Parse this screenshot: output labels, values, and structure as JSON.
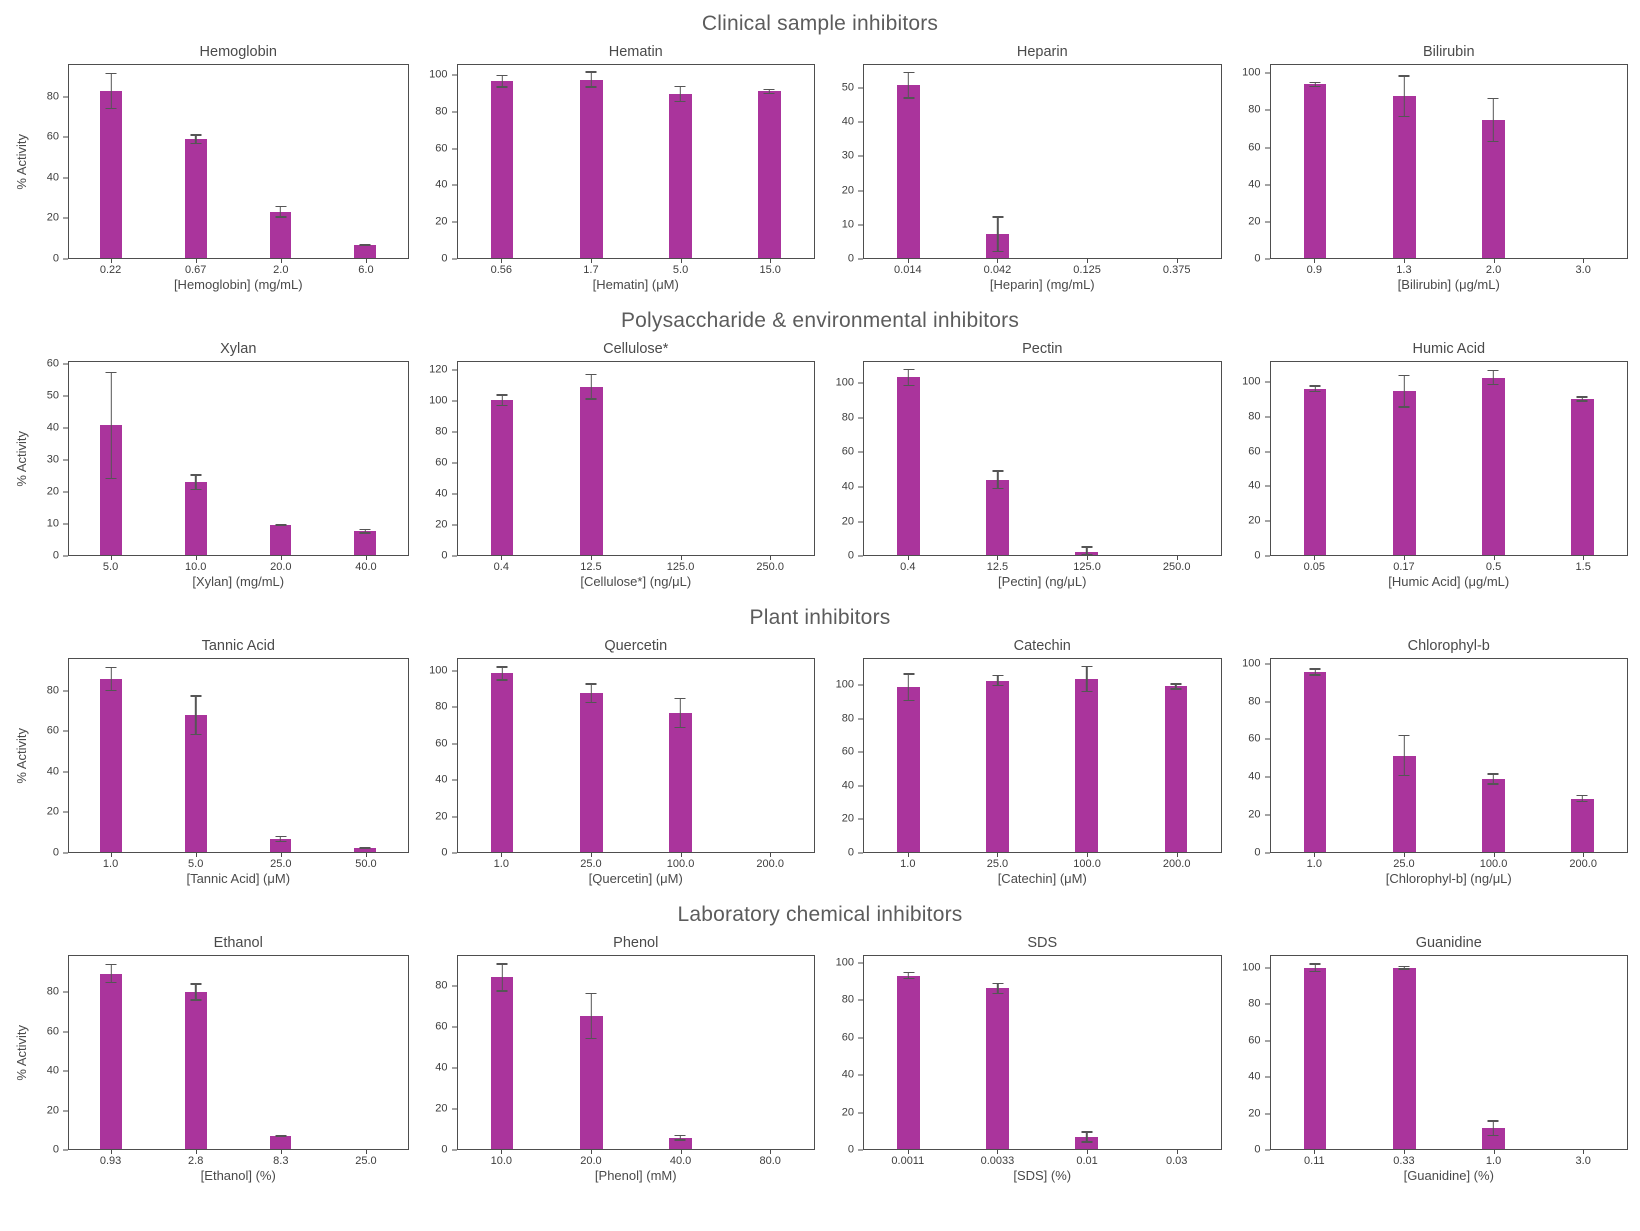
{
  "page": {
    "sections": [
      {
        "title": "Clinical sample inhibitors"
      },
      {
        "title": "Polysaccharide & environmental inhibitors"
      },
      {
        "title": "Plant inhibitors"
      },
      {
        "title": "Laboratory chemical inhibitors"
      }
    ]
  },
  "colors": {
    "bar": "#AA349C",
    "error_bar": "#555555",
    "axis": "#4e4e4e",
    "title_text": "#5c5c5c"
  },
  "chart_data": [
    {
      "type": "bar",
      "section": 0,
      "title": "Hemoglobin",
      "xlabel": "[Hemoglobin] (mg/mL)",
      "ylabel": "% Activity",
      "categories": [
        "0.22",
        "0.67",
        "2.0",
        "6.0"
      ],
      "values": [
        83,
        59,
        23,
        6.5
      ],
      "errors": [
        9,
        2.5,
        3,
        0.5
      ],
      "yticks": [
        0,
        20,
        40,
        60,
        80
      ],
      "ylim": [
        0,
        96
      ]
    },
    {
      "type": "bar",
      "section": 0,
      "title": "Hematin",
      "xlabel": "[Hematin] (μM)",
      "ylabel": "",
      "categories": [
        "0.56",
        "1.7",
        "5.0",
        "15.0"
      ],
      "values": [
        97,
        98,
        90,
        91.5
      ],
      "errors": [
        3.5,
        4.5,
        4.5,
        1.5
      ],
      "yticks": [
        0,
        20,
        40,
        60,
        80,
        100
      ],
      "ylim": [
        0,
        106
      ]
    },
    {
      "type": "bar",
      "section": 0,
      "title": "Heparin",
      "xlabel": "[Heparin] (mg/mL)",
      "ylabel": "",
      "categories": [
        "0.014",
        "0.042",
        "0.125",
        "0.375"
      ],
      "values": [
        51,
        7,
        0,
        0
      ],
      "errors": [
        4,
        5.3,
        0,
        0
      ],
      "yticks": [
        0,
        10,
        20,
        30,
        40,
        50
      ],
      "ylim": [
        0,
        57
      ]
    },
    {
      "type": "bar",
      "section": 0,
      "title": "Bilirubin",
      "xlabel": "[Bilirubin] (μg/mL)",
      "ylabel": "",
      "categories": [
        "0.9",
        "1.3",
        "2.0",
        "3.0"
      ],
      "values": [
        94.5,
        88,
        75,
        0
      ],
      "errors": [
        1.5,
        11.5,
        12,
        0
      ],
      "yticks": [
        0,
        20,
        40,
        60,
        80,
        100
      ],
      "ylim": [
        0,
        105
      ]
    },
    {
      "type": "bar",
      "section": 1,
      "title": "Xylan",
      "xlabel": "[Xylan] (mg/mL)",
      "ylabel": "% Activity",
      "categories": [
        "5.0",
        "10.0",
        "20.0",
        "40.0"
      ],
      "values": [
        41,
        23,
        9.5,
        7.5
      ],
      "errors": [
        17,
        2.5,
        0.3,
        0.8
      ],
      "yticks": [
        0,
        10,
        20,
        30,
        40,
        50,
        60
      ],
      "ylim": [
        0,
        61
      ]
    },
    {
      "type": "bar",
      "section": 1,
      "title": "Cellulose*",
      "xlabel": "[Cellulose*] (ng/μL)",
      "ylabel": "",
      "categories": [
        "0.4",
        "12.5",
        "125.0",
        "250.0"
      ],
      "values": [
        101,
        110,
        0,
        0
      ],
      "errors": [
        4,
        8.5,
        0,
        0
      ],
      "yticks": [
        0,
        20,
        40,
        60,
        80,
        100,
        120
      ],
      "ylim": [
        0,
        126
      ]
    },
    {
      "type": "bar",
      "section": 1,
      "title": "Pectin",
      "xlabel": "[Pectin] (ng/μL)",
      "ylabel": "",
      "categories": [
        "0.4",
        "12.5",
        "125.0",
        "250.0"
      ],
      "values": [
        104,
        44,
        2,
        0
      ],
      "errors": [
        5,
        5.5,
        3,
        0
      ],
      "yticks": [
        0,
        20,
        40,
        60,
        80,
        100
      ],
      "ylim": [
        0,
        113
      ]
    },
    {
      "type": "bar",
      "section": 1,
      "title": "Humic Acid",
      "xlabel": "[Humic Acid] (μg/mL)",
      "ylabel": "",
      "categories": [
        "0.05",
        "0.17",
        "0.5",
        "1.5"
      ],
      "values": [
        96.5,
        95,
        103,
        90.5
      ],
      "errors": [
        2,
        9.5,
        4.5,
        1.5
      ],
      "yticks": [
        0,
        20,
        40,
        60,
        80,
        100
      ],
      "ylim": [
        0,
        112
      ]
    },
    {
      "type": "bar",
      "section": 2,
      "title": "Tannic Acid",
      "xlabel": "[Tannic Acid] (μM)",
      "ylabel": "% Activity",
      "categories": [
        "1.0",
        "5.0",
        "25.0",
        "50.0"
      ],
      "values": [
        86,
        68,
        6.5,
        2
      ],
      "errors": [
        6,
        10,
        1.5,
        0.5
      ],
      "yticks": [
        0,
        20,
        40,
        60,
        80
      ],
      "ylim": [
        0,
        96
      ]
    },
    {
      "type": "bar",
      "section": 2,
      "title": "Quercetin",
      "xlabel": "[Quercetin] (μM)",
      "ylabel": "",
      "categories": [
        "1.0",
        "25.0",
        "100.0",
        "200.0"
      ],
      "values": [
        99,
        88,
        77,
        0
      ],
      "errors": [
        4,
        5.5,
        8.5,
        0
      ],
      "yticks": [
        0,
        20,
        40,
        60,
        80,
        100
      ],
      "ylim": [
        0,
        107
      ]
    },
    {
      "type": "bar",
      "section": 2,
      "title": "Catechin",
      "xlabel": "[Catechin] (μM)",
      "ylabel": "",
      "categories": [
        "1.0",
        "25.0",
        "100.0",
        "200.0"
      ],
      "values": [
        99,
        103,
        104,
        99.5
      ],
      "errors": [
        8.5,
        3.5,
        8,
        2
      ],
      "yticks": [
        0,
        20,
        40,
        60,
        80,
        100
      ],
      "ylim": [
        0,
        116
      ]
    },
    {
      "type": "bar",
      "section": 2,
      "title": "Chlorophyl-b",
      "xlabel": "[Chlorophyl-b] (ng/μL)",
      "ylabel": "",
      "categories": [
        "1.0",
        "25.0",
        "100.0",
        "200.0"
      ],
      "values": [
        96,
        51.5,
        39,
        28.5
      ],
      "errors": [
        2,
        11,
        3,
        2
      ],
      "yticks": [
        0,
        20,
        40,
        60,
        80,
        100
      ],
      "ylim": [
        0,
        103
      ]
    },
    {
      "type": "bar",
      "section": 3,
      "title": "Ethanol",
      "xlabel": "[Ethanol] (%)",
      "ylabel": "% Activity",
      "categories": [
        "0.93",
        "2.8",
        "8.3",
        "25.0"
      ],
      "values": [
        90,
        80.5,
        6.5,
        0
      ],
      "errors": [
        5,
        4.5,
        0.5,
        0
      ],
      "yticks": [
        0,
        20,
        40,
        60,
        80
      ],
      "ylim": [
        0,
        99
      ]
    },
    {
      "type": "bar",
      "section": 3,
      "title": "Phenol",
      "xlabel": "[Phenol] (mM)",
      "ylabel": "",
      "categories": [
        "10.0",
        "20.0",
        "40.0",
        "80.0"
      ],
      "values": [
        84.5,
        65.5,
        5.5,
        0
      ],
      "errors": [
        7,
        11.5,
        1.5,
        0
      ],
      "yticks": [
        0,
        20,
        40,
        60,
        80
      ],
      "ylim": [
        0,
        95
      ]
    },
    {
      "type": "bar",
      "section": 3,
      "title": "SDS",
      "xlabel": "[SDS] (%)",
      "ylabel": "",
      "categories": [
        "0.0011",
        "0.0033",
        "0.01",
        "0.03"
      ],
      "values": [
        93.5,
        86.5,
        6.5,
        0
      ],
      "errors": [
        2,
        3,
        3,
        0
      ],
      "yticks": [
        0,
        20,
        40,
        60,
        80,
        100
      ],
      "ylim": [
        0,
        104
      ]
    },
    {
      "type": "bar",
      "section": 3,
      "title": "Guanidine",
      "xlabel": "[Guanidine] (%)",
      "ylabel": "",
      "categories": [
        "0.11",
        "0.33",
        "1.0",
        "3.0"
      ],
      "values": [
        100.5,
        100.5,
        11.5,
        0
      ],
      "errors": [
        2.5,
        1,
        4.5,
        0
      ],
      "yticks": [
        0,
        20,
        40,
        60,
        80,
        100
      ],
      "ylim": [
        0,
        107
      ]
    }
  ]
}
